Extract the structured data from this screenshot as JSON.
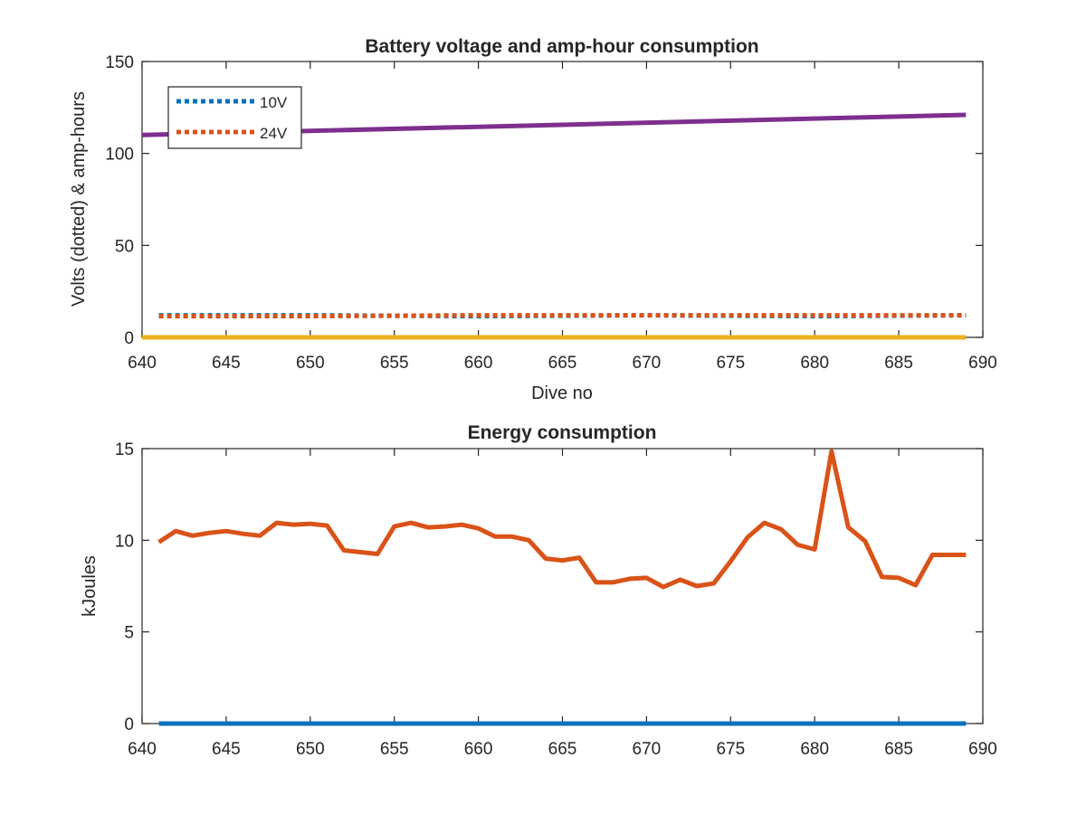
{
  "chart_data": [
    {
      "type": "line",
      "title": "Battery voltage and amp-hour consumption",
      "xlabel": "Dive no",
      "ylabel": "Volts (dotted) & amp-hours",
      "xlim": [
        640,
        690
      ],
      "ylim": [
        0,
        150
      ],
      "xticks": [
        "640",
        "645",
        "650",
        "655",
        "660",
        "665",
        "670",
        "675",
        "680",
        "685",
        "690"
      ],
      "yticks": [
        "0",
        "50",
        "100",
        "150"
      ],
      "grid": false,
      "legend": {
        "position": "top-left",
        "entries": [
          "10V",
          "24V"
        ]
      },
      "series": [
        {
          "name": "10V",
          "style": "dotted",
          "color": "#0072BD",
          "x": [
            641,
            650,
            660,
            670,
            680,
            689
          ],
          "y": [
            12,
            12,
            11.5,
            12,
            11.5,
            12
          ]
        },
        {
          "name": "24V",
          "style": "dotted",
          "color": "#D95319",
          "x": [
            641,
            650,
            660,
            670,
            680,
            689
          ],
          "y": [
            11.5,
            11.5,
            12,
            12,
            12,
            12
          ]
        },
        {
          "style": "solid",
          "color": "#EDB120",
          "x": [
            640,
            689
          ],
          "y": [
            0,
            0
          ]
        },
        {
          "style": "solid",
          "color": "#7E2F8E",
          "x": [
            640,
            689
          ],
          "y": [
            110,
            121
          ]
        }
      ]
    },
    {
      "type": "line",
      "title": "Energy consumption",
      "xlabel": "",
      "ylabel": "kJoules",
      "xlim": [
        640,
        690
      ],
      "ylim": [
        0,
        15
      ],
      "xticks": [
        "640",
        "645",
        "650",
        "655",
        "660",
        "665",
        "670",
        "675",
        "680",
        "685",
        "690"
      ],
      "yticks": [
        "0",
        "5",
        "10",
        "15"
      ],
      "grid": false,
      "series": [
        {
          "style": "solid",
          "color": "#0072BD",
          "x": [
            641,
            689
          ],
          "y": [
            0,
            0
          ]
        },
        {
          "style": "solid",
          "color": "#D95319",
          "x": [
            641,
            642,
            643,
            644,
            645,
            646,
            647,
            648,
            649,
            650,
            651,
            652,
            653,
            654,
            655,
            656,
            657,
            658,
            659,
            660,
            661,
            662,
            663,
            664,
            665,
            666,
            667,
            668,
            669,
            670,
            671,
            672,
            673,
            674,
            675,
            676,
            677,
            678,
            679,
            680,
            681,
            682,
            683,
            684,
            685,
            686,
            687,
            688,
            689
          ],
          "y": [
            9.9,
            10.5,
            10.25,
            10.4,
            10.5,
            10.35,
            10.25,
            10.95,
            10.85,
            10.9,
            10.8,
            9.45,
            9.35,
            9.25,
            10.75,
            10.95,
            10.7,
            10.75,
            10.85,
            10.65,
            10.2,
            10.2,
            10.0,
            9.0,
            8.9,
            9.05,
            7.7,
            7.7,
            7.9,
            7.95,
            7.45,
            7.85,
            7.5,
            7.65,
            8.85,
            10.15,
            10.95,
            10.6,
            9.75,
            9.5,
            14.85,
            10.7,
            9.95,
            8.0,
            7.95,
            7.55,
            9.2,
            9.2,
            9.2
          ]
        }
      ]
    }
  ]
}
